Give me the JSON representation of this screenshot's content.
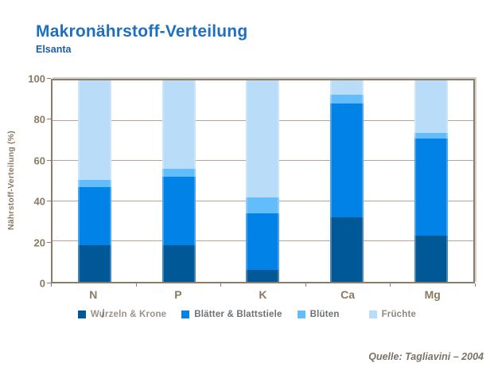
{
  "header": {
    "title": "Makronährstoff-Verteilung",
    "subtitle": "Elsanta"
  },
  "footer": {
    "source": "Quelle: Tagliavini – 2004"
  },
  "colors": {
    "title": "#1F6FC0",
    "subtitle": "#1D5FA7",
    "axis_text": "#8A7A63",
    "frame": "#8D7C67",
    "gridline": "#B3A496",
    "source_text": "#7A7268"
  },
  "chart_data": {
    "type": "bar",
    "stacked": true,
    "title": "Makronährstoff-Verteilung",
    "subtitle": "Elsanta",
    "categories": [
      "N",
      "P",
      "K",
      "Ca",
      "Mg"
    ],
    "series": [
      {
        "name": "Wurzeln & Krone",
        "color": "#005996",
        "label_color": "#9B9289",
        "values": [
          18,
          18,
          6,
          32,
          23
        ]
      },
      {
        "name": "Blätter & Blattstiele",
        "color": "#0082E6",
        "label_color": "#6E7174",
        "values": [
          29,
          34,
          28,
          56.5,
          48
        ]
      },
      {
        "name": "Blüten",
        "color": "#63BDFB",
        "label_color": "#6E7174",
        "values": [
          3.5,
          4,
          8,
          4.5,
          3
        ]
      },
      {
        "name": "Früchte",
        "color": "#B9DCF9",
        "label_color": "#8F8880",
        "values": [
          49.5,
          44,
          58,
          7,
          26
        ]
      }
    ],
    "ylabel": "Nährstoff-Verteilung (%)",
    "ylim": [
      0,
      100
    ],
    "yticks": [
      0,
      20,
      40,
      60,
      80,
      100
    ],
    "grid": true,
    "legend_position": "bottom"
  }
}
